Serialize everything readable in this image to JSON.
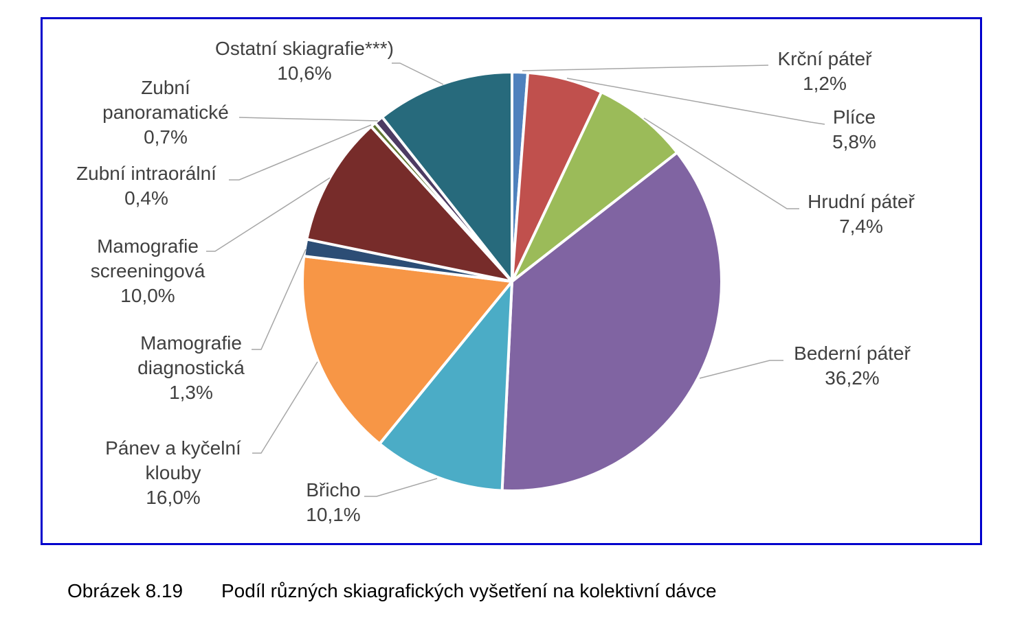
{
  "caption": {
    "number": "Obrázek 8.19",
    "text": "Podíl různých skiagrafických vyšetření na kolektivní dávce"
  },
  "chart_data": {
    "type": "pie",
    "title": "",
    "start_angle_deg": 0,
    "direction": "clockwise",
    "slices": [
      {
        "label": "Krční páteř",
        "value": 1.2,
        "display": "1,2%",
        "color": "#4f81bd"
      },
      {
        "label": "Plíce",
        "value": 5.8,
        "display": "5,8%",
        "color": "#c0504d"
      },
      {
        "label": "Hrudní páteř",
        "value": 7.4,
        "display": "7,4%",
        "color": "#9bbb59"
      },
      {
        "label": "Bederní páteř",
        "value": 36.2,
        "display": "36,2%",
        "color": "#8064a2"
      },
      {
        "label": "Břicho",
        "value": 10.1,
        "display": "10,1%",
        "color": "#4bacc6"
      },
      {
        "label": "Pánev a kyčelní klouby",
        "value": 16.0,
        "display": "16,0%",
        "color": "#f79646"
      },
      {
        "label": "Mamografie diagnostická",
        "value": 1.3,
        "display": "1,3%",
        "color": "#2c4d75"
      },
      {
        "label": "Mamografie screeningová",
        "value": 10.0,
        "display": "10,0%",
        "color": "#772c2a"
      },
      {
        "label": "Zubní intraorální",
        "value": 0.4,
        "display": "0,4%",
        "color": "#5f7530"
      },
      {
        "label": "Zubní panoramatické",
        "value": 0.7,
        "display": "0,7%",
        "color": "#4d3b62"
      },
      {
        "label": "Ostatní skiagrafie***)",
        "value": 10.6,
        "display": "10,6%",
        "color": "#276a7c"
      }
    ]
  }
}
